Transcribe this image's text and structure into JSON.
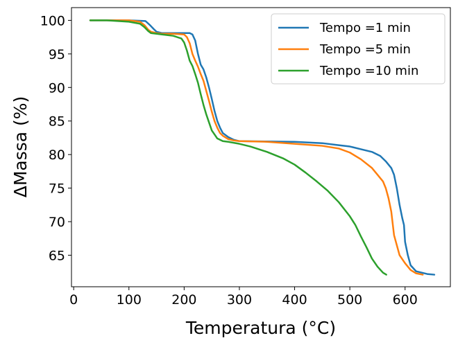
{
  "chart_data": {
    "type": "line",
    "xlabel": "Temperatura (°C)",
    "ylabel": "ΔMassa (%)",
    "xlim": [
      -4,
      682
    ],
    "ylim": [
      60.3,
      101.9
    ],
    "xticks": [
      0,
      100,
      200,
      300,
      400,
      500,
      600
    ],
    "yticks": [
      65,
      70,
      75,
      80,
      85,
      90,
      95,
      100
    ],
    "grid": false,
    "legend_position": "top-right",
    "series": [
      {
        "name": "Tempo =1 min",
        "color": "#1f77b4",
        "x": [
          30,
          60,
          100,
          130,
          138,
          145,
          150,
          160,
          180,
          200,
          210,
          215,
          220,
          225,
          230,
          235,
          240,
          245,
          250,
          255,
          260,
          265,
          270,
          280,
          290,
          300,
          350,
          400,
          450,
          480,
          500,
          520,
          540,
          555,
          565,
          575,
          580,
          585,
          590,
          595,
          598,
          600,
          605,
          610,
          620,
          640,
          653
        ],
        "y": [
          100,
          100,
          100,
          99.9,
          99.3,
          98.7,
          98.3,
          98.1,
          98.1,
          98.1,
          98.1,
          97.9,
          97.0,
          95.0,
          93.4,
          92.7,
          91.5,
          90.0,
          88.3,
          86.5,
          85.0,
          84.0,
          83.2,
          82.6,
          82.2,
          82.0,
          81.95,
          81.9,
          81.7,
          81.4,
          81.2,
          80.8,
          80.4,
          79.8,
          79.0,
          78.0,
          77.0,
          75.0,
          72.5,
          70.5,
          69.5,
          67.0,
          65.0,
          63.5,
          62.6,
          62.2,
          62.1
        ]
      },
      {
        "name": "Tempo =5 min",
        "color": "#ff7f0e",
        "x": [
          30,
          60,
          100,
          120,
          128,
          135,
          140,
          150,
          160,
          180,
          200,
          205,
          210,
          215,
          220,
          225,
          230,
          235,
          240,
          245,
          250,
          255,
          260,
          265,
          270,
          280,
          290,
          300,
          350,
          400,
          450,
          480,
          500,
          520,
          540,
          550,
          560,
          565,
          570,
          575,
          580,
          590,
          600,
          610,
          620,
          632
        ],
        "y": [
          100,
          100,
          100,
          99.8,
          99.3,
          98.6,
          98.3,
          98.1,
          98.0,
          98.0,
          97.9,
          97.5,
          96.6,
          95.0,
          94.0,
          93.1,
          92.0,
          91.0,
          89.5,
          88.0,
          86.4,
          85.0,
          84.0,
          83.2,
          82.8,
          82.3,
          82.1,
          82.0,
          81.9,
          81.6,
          81.3,
          80.9,
          80.3,
          79.3,
          78.0,
          77.0,
          76.0,
          75.0,
          73.5,
          71.5,
          68.0,
          65.0,
          63.8,
          62.8,
          62.3,
          62.1
        ]
      },
      {
        "name": "Tempo =10 min",
        "color": "#2ca02c",
        "x": [
          30,
          60,
          100,
          120,
          128,
          135,
          140,
          150,
          160,
          180,
          195,
          200,
          205,
          210,
          215,
          220,
          225,
          230,
          235,
          240,
          245,
          250,
          255,
          260,
          270,
          280,
          300,
          320,
          350,
          380,
          400,
          420,
          440,
          460,
          480,
          500,
          510,
          520,
          530,
          540,
          550,
          560,
          566
        ],
        "y": [
          100,
          100,
          99.8,
          99.5,
          99.0,
          98.4,
          98.1,
          98.0,
          97.9,
          97.7,
          97.3,
          96.7,
          95.5,
          94.0,
          93.2,
          92.0,
          90.7,
          89.0,
          87.4,
          86.0,
          84.8,
          83.6,
          83.0,
          82.4,
          82.0,
          81.9,
          81.6,
          81.2,
          80.4,
          79.4,
          78.5,
          77.3,
          76.0,
          74.6,
          72.9,
          70.8,
          69.5,
          67.8,
          66.2,
          64.5,
          63.3,
          62.4,
          62.1
        ]
      }
    ]
  }
}
